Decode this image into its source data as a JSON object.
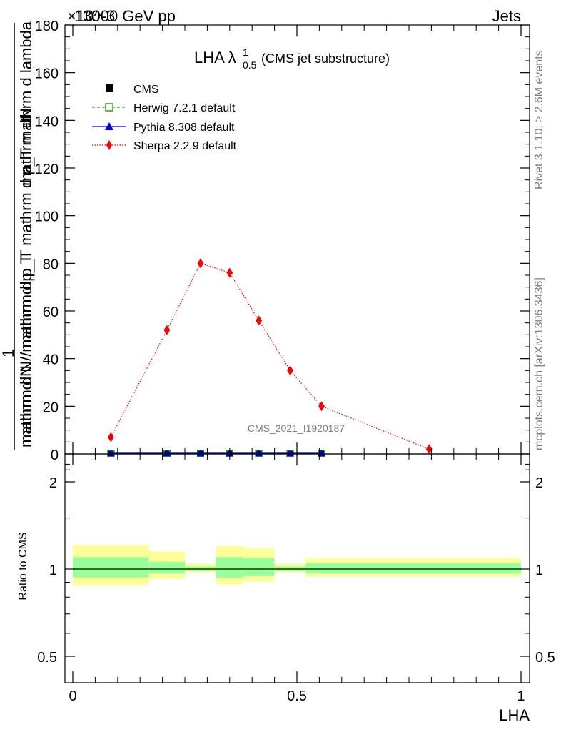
{
  "header": {
    "left": "13000 GeV pp",
    "right": "Jets",
    "exponent": "×10^-3"
  },
  "title": {
    "main": "LHA λ",
    "sup": "1",
    "sub": "0.5",
    "note": "(CMS jet substructure)"
  },
  "side": {
    "rivet": "Rivet 3.1.10, ≥ 2.6M events",
    "mcplots": "mcplots.cern.ch [arXiv:1306.3436]"
  },
  "watermark": "CMS_2021_I1920187",
  "colors": {
    "cms": "#000000",
    "herwig": "#3a9a1a",
    "pythia": "#0000cc",
    "sherpa": "#e8080a",
    "band_outer": "#ffff99",
    "band_inner": "#99ff99"
  },
  "chart_data": [
    {
      "type": "line",
      "ylabel_top": "1",
      "ylabel_bottom": "mathrm d N / mathrm d p_T mathrm d N / mathrm d p_T mathrm d lambda",
      "ylabel_lines": [
        "mathrm dN",
        "mathrm d N / mathrm d p_T mathrm d p_T mathrm d lambda",
        "1",
        "mathrm d N / mathrm d p_T"
      ],
      "ylim": [
        0,
        180
      ],
      "yticks": [
        0,
        20,
        40,
        60,
        80,
        100,
        120,
        140,
        160,
        180
      ],
      "xlim": [
        0,
        1
      ],
      "legend_position": "top-left",
      "series": [
        {
          "name": "CMS",
          "marker": "square",
          "x": [
            0.085,
            0.21,
            0.285,
            0.35,
            0.415,
            0.485,
            0.555
          ],
          "y": [
            0.3,
            0.3,
            0.3,
            0.3,
            0.3,
            0.3,
            0.3
          ]
        },
        {
          "name": "Herwig 7.2.1 default",
          "marker": "open-square",
          "line": "dashed",
          "x": [
            0.085,
            0.21,
            0.285,
            0.35,
            0.415,
            0.485,
            0.555
          ],
          "y": [
            0.3,
            0.3,
            0.3,
            0.3,
            0.3,
            0.3,
            0.3
          ]
        },
        {
          "name": "Pythia 8.308 default",
          "marker": "triangle",
          "line": "solid",
          "x": [
            0.085,
            0.21,
            0.285,
            0.35,
            0.415,
            0.485,
            0.555
          ],
          "y": [
            0.3,
            0.3,
            0.3,
            0.3,
            0.3,
            0.3,
            0.3
          ]
        },
        {
          "name": "Sherpa 2.2.9 default",
          "marker": "diamond",
          "line": "dotted",
          "x": [
            0.085,
            0.21,
            0.285,
            0.35,
            0.415,
            0.485,
            0.555,
            0.795
          ],
          "y": [
            7,
            52,
            80,
            76,
            56,
            35,
            20,
            2
          ]
        }
      ]
    },
    {
      "type": "area",
      "ylabel": "Ratio to CMS",
      "xlabel": "LHA",
      "ylim": [
        0.4,
        2.4
      ],
      "yticks": [
        0.5,
        1,
        2
      ],
      "xticks": [
        0,
        0.5,
        1
      ],
      "xticklabels": [
        "0",
        "0.5",
        "1"
      ],
      "reference": 1,
      "bins": [
        {
          "x0": 0.0,
          "x1": 0.17,
          "outer": [
            0.88,
            1.21
          ],
          "inner": [
            0.935,
            1.1
          ]
        },
        {
          "x0": 0.17,
          "x1": 0.25,
          "outer": [
            0.925,
            1.15
          ],
          "inner": [
            0.965,
            1.06
          ]
        },
        {
          "x0": 0.25,
          "x1": 0.32,
          "outer": [
            0.975,
            1.045
          ],
          "inner": [
            0.985,
            1.02
          ]
        },
        {
          "x0": 0.32,
          "x1": 0.38,
          "outer": [
            0.885,
            1.2
          ],
          "inner": [
            0.93,
            1.1
          ]
        },
        {
          "x0": 0.38,
          "x1": 0.45,
          "outer": [
            0.905,
            1.18
          ],
          "inner": [
            0.945,
            1.09
          ]
        },
        {
          "x0": 0.45,
          "x1": 0.52,
          "outer": [
            0.975,
            1.045
          ],
          "inner": [
            0.985,
            1.02
          ]
        },
        {
          "x0": 0.52,
          "x1": 1.0,
          "outer": [
            0.94,
            1.09
          ],
          "inner": [
            0.965,
            1.05
          ]
        }
      ]
    }
  ]
}
